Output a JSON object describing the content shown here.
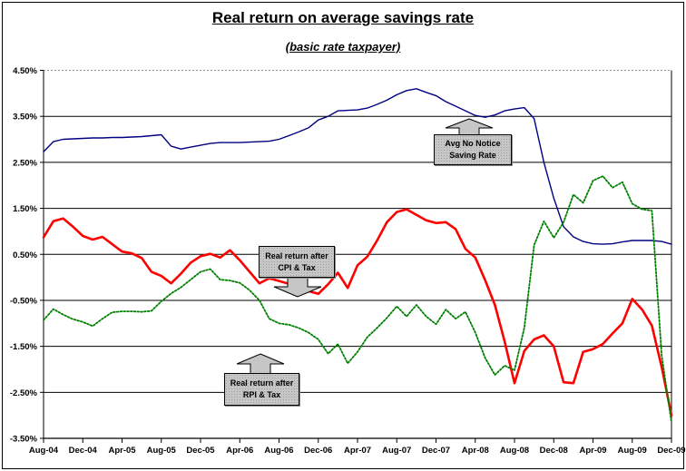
{
  "title": "Real return on average savings rate",
  "subtitle": "(basic rate taxpayer)",
  "colors": {
    "avg_no_notice_line": "#000080",
    "cpi_line": "#ff0000",
    "rpi_line": "#008000",
    "gridline": "#000000",
    "top_gridline": "#909090",
    "callout_fill": "#c6c6c6",
    "callout_border": "#000000",
    "background": "#ffffff"
  },
  "axes": {
    "y_tick_labels": [
      "4.50%",
      "3.50%",
      "2.50%",
      "1.50%",
      "0.50%",
      "-0.50%",
      "-1.50%",
      "-2.50%",
      "-3.50%"
    ],
    "y_tick_values": [
      4.5,
      3.5,
      2.5,
      1.5,
      0.5,
      -0.5,
      -1.5,
      -2.5,
      -3.5
    ],
    "x_tick_labels": [
      "Aug-04",
      "Dec-04",
      "Apr-05",
      "Aug-05",
      "Dec-05",
      "Apr-06",
      "Aug-06",
      "Dec-06",
      "Apr-07",
      "Aug-07",
      "Dec-07",
      "Apr-08",
      "Aug-08",
      "Dec-08",
      "Apr-09",
      "Aug-09",
      "Dec-09"
    ],
    "x_tick_every_n_months": 4
  },
  "callouts": [
    {
      "id": "avg-no-notice",
      "lines": [
        "Avg No Notice",
        "Saving Rate"
      ],
      "arrow": "up"
    },
    {
      "id": "cpi",
      "lines": [
        "Real return after",
        "CPI & Tax"
      ],
      "arrow": "down"
    },
    {
      "id": "rpi",
      "lines": [
        "Real return after",
        "RPI & Tax"
      ],
      "arrow": "up"
    }
  ],
  "chart_data": {
    "type": "line",
    "title": "Real return on average savings rate",
    "subtitle": "(basic rate taxpayer)",
    "xlabel": "",
    "ylabel": "",
    "ylim": [
      -3.5,
      4.5
    ],
    "grid": "horizontal",
    "legend": "callout-boxes",
    "x": [
      "Aug-04",
      "Sep-04",
      "Oct-04",
      "Nov-04",
      "Dec-04",
      "Jan-05",
      "Feb-05",
      "Mar-05",
      "Apr-05",
      "May-05",
      "Jun-05",
      "Jul-05",
      "Aug-05",
      "Sep-05",
      "Oct-05",
      "Nov-05",
      "Dec-05",
      "Jan-06",
      "Feb-06",
      "Mar-06",
      "Apr-06",
      "May-06",
      "Jun-06",
      "Jul-06",
      "Aug-06",
      "Sep-06",
      "Oct-06",
      "Nov-06",
      "Dec-06",
      "Jan-07",
      "Feb-07",
      "Mar-07",
      "Apr-07",
      "May-07",
      "Jun-07",
      "Jul-07",
      "Aug-07",
      "Sep-07",
      "Oct-07",
      "Nov-07",
      "Dec-07",
      "Jan-08",
      "Feb-08",
      "Mar-08",
      "Apr-08",
      "May-08",
      "Jun-08",
      "Jul-08",
      "Aug-08",
      "Sep-08",
      "Oct-08",
      "Nov-08",
      "Dec-08",
      "Jan-09",
      "Feb-09",
      "Mar-09",
      "Apr-09",
      "May-09",
      "Jun-09",
      "Jul-09",
      "Aug-09",
      "Sep-09",
      "Oct-09",
      "Nov-09",
      "Dec-09"
    ],
    "series": [
      {
        "name": "Avg No Notice Saving Rate",
        "color": "#000080",
        "style": "solid",
        "width": 1.4,
        "values": [
          2.73,
          2.95,
          3.0,
          3.01,
          3.02,
          3.03,
          3.03,
          3.04,
          3.04,
          3.05,
          3.06,
          3.08,
          3.1,
          2.85,
          2.79,
          2.83,
          2.87,
          2.91,
          2.93,
          2.93,
          2.93,
          2.94,
          2.95,
          2.96,
          3.0,
          3.08,
          3.16,
          3.25,
          3.42,
          3.5,
          3.62,
          3.63,
          3.64,
          3.68,
          3.76,
          3.85,
          3.97,
          4.06,
          4.1,
          4.02,
          3.95,
          3.82,
          3.72,
          3.62,
          3.52,
          3.48,
          3.53,
          3.62,
          3.66,
          3.69,
          3.45,
          2.5,
          1.72,
          1.1,
          0.88,
          0.78,
          0.73,
          0.72,
          0.73,
          0.77,
          0.8,
          0.8,
          0.8,
          0.78,
          0.72
        ]
      },
      {
        "name": "Real return after CPI & Tax",
        "color": "#ff0000",
        "style": "solid",
        "width": 2.6,
        "values": [
          0.87,
          1.22,
          1.28,
          1.1,
          0.9,
          0.82,
          0.88,
          0.72,
          0.56,
          0.52,
          0.42,
          0.12,
          0.03,
          -0.13,
          0.08,
          0.32,
          0.46,
          0.51,
          0.43,
          0.59,
          0.37,
          0.12,
          -0.13,
          -0.02,
          -0.08,
          -0.14,
          -0.2,
          -0.3,
          -0.36,
          -0.15,
          0.1,
          -0.23,
          0.26,
          0.45,
          0.8,
          1.2,
          1.42,
          1.48,
          1.36,
          1.24,
          1.18,
          1.2,
          1.05,
          0.62,
          0.43,
          -0.06,
          -0.6,
          -1.4,
          -2.3,
          -1.6,
          -1.35,
          -1.26,
          -1.5,
          -2.28,
          -2.3,
          -1.62,
          -1.56,
          -1.45,
          -1.22,
          -1.0,
          -0.47,
          -0.7,
          -1.05,
          -1.95,
          -3.0
        ]
      },
      {
        "name": "Real return after RPI & Tax",
        "color": "#008000",
        "style": "dotted",
        "width": 1.8,
        "values": [
          -0.93,
          -0.69,
          -0.81,
          -0.91,
          -0.97,
          -1.06,
          -0.9,
          -0.76,
          -0.74,
          -0.74,
          -0.75,
          -0.73,
          -0.52,
          -0.35,
          -0.22,
          -0.05,
          0.12,
          0.18,
          -0.05,
          -0.07,
          -0.12,
          -0.28,
          -0.5,
          -0.9,
          -1.0,
          -1.03,
          -1.1,
          -1.2,
          -1.35,
          -1.66,
          -1.45,
          -1.87,
          -1.62,
          -1.3,
          -1.1,
          -0.88,
          -0.63,
          -0.85,
          -0.6,
          -0.85,
          -1.02,
          -0.7,
          -0.9,
          -0.75,
          -1.2,
          -1.75,
          -2.12,
          -1.92,
          -2.02,
          -1.1,
          0.7,
          1.22,
          0.86,
          1.2,
          1.8,
          1.62,
          2.1,
          2.2,
          1.95,
          2.07,
          1.6,
          1.48,
          1.45,
          -1.7,
          -3.15
        ]
      }
    ]
  }
}
